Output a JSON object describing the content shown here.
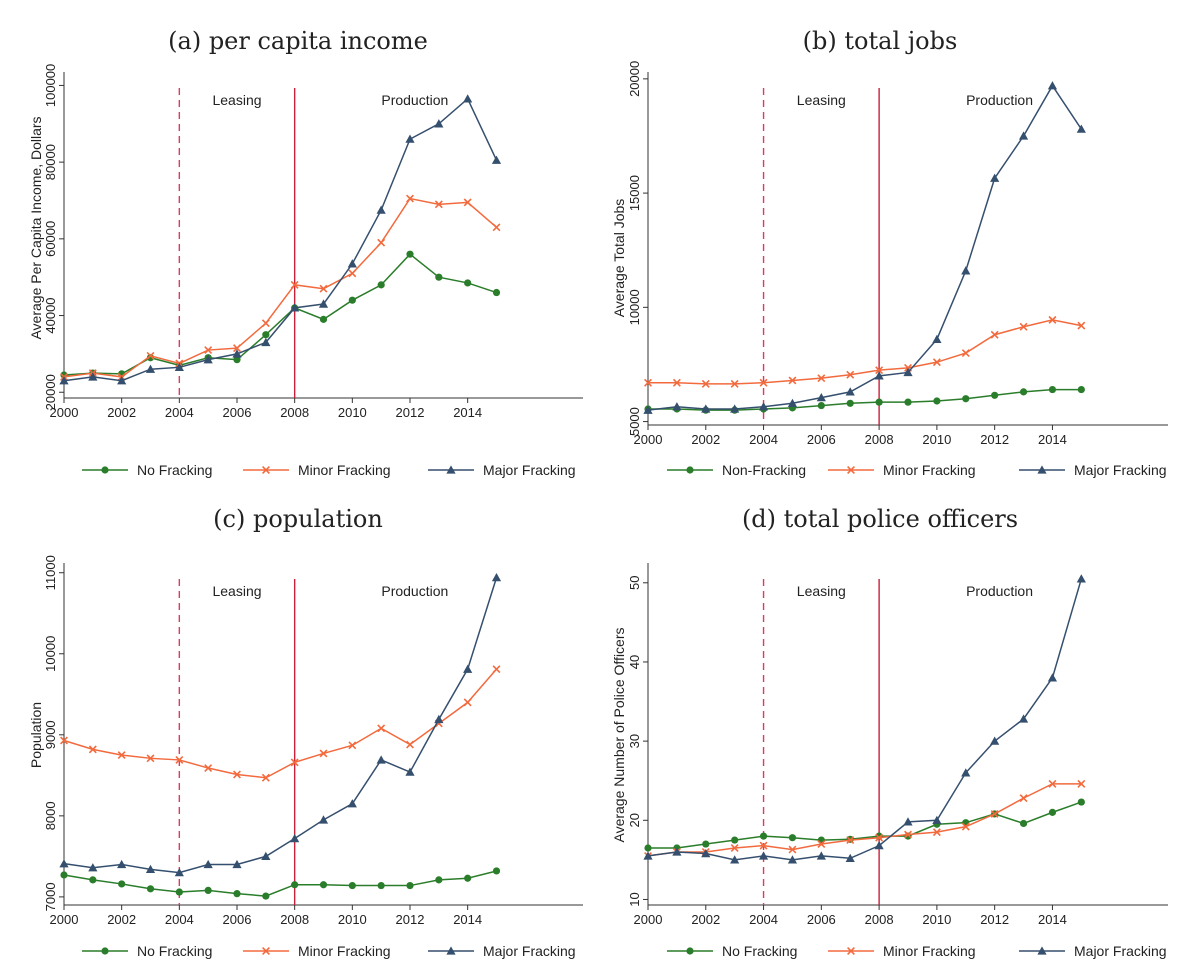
{
  "colors": {
    "no_fracking": "#2a7d2a",
    "minor_fracking": "#f26a3d",
    "major_fracking": "#354f6e",
    "leasing_line": "#e0385e",
    "production_line": "#cc1f3a"
  },
  "chart_data": [
    {
      "type": "line",
      "title": "(a) per capita income",
      "xlabel": "",
      "ylabel": "Average Per Capita Income, Dollars",
      "x": [
        2000,
        2001,
        2002,
        2003,
        2004,
        2005,
        2006,
        2007,
        2008,
        2009,
        2010,
        2011,
        2012,
        2013,
        2014,
        2015
      ],
      "xlim": [
        2000,
        2018
      ],
      "xticks": [
        2000,
        2002,
        2004,
        2006,
        2008,
        2010,
        2012,
        2014
      ],
      "ylim": [
        18500,
        103500
      ],
      "yticks": [
        20000,
        40000,
        60000,
        80000,
        100000
      ],
      "ytick_labels": [
        "20000",
        "40000",
        "60000",
        "80000",
        "100000"
      ],
      "grid": false,
      "legend_position": "bottom",
      "regions": [
        {
          "label": "Leasing",
          "x": 2004,
          "line": "dashed"
        },
        {
          "label": "Production",
          "x": 2008,
          "line": "solid"
        }
      ],
      "series": [
        {
          "name": "No Fracking",
          "marker": "circle",
          "values": [
            24500,
            25000,
            24800,
            29000,
            27000,
            29000,
            28500,
            35000,
            42000,
            39000,
            44000,
            48000,
            56000,
            50000,
            48500,
            46000
          ]
        },
        {
          "name": "Minor Fracking",
          "marker": "x",
          "values": [
            24000,
            25000,
            24000,
            29500,
            27500,
            31000,
            31500,
            38000,
            48000,
            47000,
            51000,
            59000,
            70500,
            69000,
            69500,
            63000
          ]
        },
        {
          "name": "Major Fracking",
          "marker": "triangle",
          "values": [
            23000,
            24000,
            23000,
            26000,
            26500,
            28500,
            30000,
            33000,
            42000,
            43000,
            53500,
            67500,
            86000,
            90000,
            96500,
            80500
          ]
        }
      ]
    },
    {
      "type": "line",
      "title": "(b) total jobs",
      "xlabel": "",
      "ylabel": "Average Total Jobs",
      "x": [
        2000,
        2001,
        2002,
        2003,
        2004,
        2005,
        2006,
        2007,
        2008,
        2009,
        2010,
        2011,
        2012,
        2013,
        2014,
        2015
      ],
      "xlim": [
        2000,
        2018
      ],
      "xticks": [
        2000,
        2002,
        2004,
        2006,
        2008,
        2010,
        2012,
        2014
      ],
      "ylim": [
        4850,
        20300
      ],
      "yticks": [
        5000,
        10000,
        15000,
        20000
      ],
      "ytick_labels": [
        "5000",
        "10000",
        "15000",
        "20000"
      ],
      "grid": false,
      "legend_position": "bottom",
      "regions": [
        {
          "label": "Leasing",
          "x": 2004,
          "line": "dashed"
        },
        {
          "label": "Production",
          "x": 2008,
          "line": "solid"
        }
      ],
      "series": [
        {
          "name": "Non-Fracking",
          "marker": "circle",
          "values": [
            5550,
            5550,
            5500,
            5500,
            5550,
            5600,
            5700,
            5800,
            5850,
            5850,
            5900,
            6000,
            6150,
            6300,
            6400,
            6400
          ]
        },
        {
          "name": "Minor Fracking",
          "marker": "x",
          "values": [
            6700,
            6700,
            6650,
            6650,
            6700,
            6800,
            6900,
            7050,
            7250,
            7350,
            7600,
            8000,
            8800,
            9150,
            9450,
            9200
          ]
        },
        {
          "name": "Major Fracking",
          "marker": "triangle",
          "values": [
            5500,
            5650,
            5550,
            5550,
            5650,
            5800,
            6050,
            6300,
            7000,
            7150,
            8600,
            11600,
            15650,
            17500,
            19700,
            17800
          ]
        }
      ]
    },
    {
      "type": "line",
      "title": "(c) population",
      "xlabel": "",
      "ylabel": "Population",
      "x": [
        2000,
        2001,
        2002,
        2003,
        2004,
        2005,
        2006,
        2007,
        2008,
        2009,
        2010,
        2011,
        2012,
        2013,
        2014,
        2015
      ],
      "xlim": [
        2000,
        2018
      ],
      "xticks": [
        2000,
        2002,
        2004,
        2006,
        2008,
        2010,
        2012,
        2014
      ],
      "ylim": [
        6900,
        11120
      ],
      "yticks": [
        7000,
        8000,
        9000,
        10000,
        11000
      ],
      "ytick_labels": [
        "7000",
        "8000",
        "9000",
        "10000",
        "11000"
      ],
      "grid": false,
      "legend_position": "bottom",
      "regions": [
        {
          "label": "Leasing",
          "x": 2004,
          "line": "dashed"
        },
        {
          "label": "Production",
          "x": 2008,
          "line": "solid"
        }
      ],
      "series": [
        {
          "name": "No Fracking",
          "marker": "circle",
          "values": [
            7270,
            7210,
            7160,
            7100,
            7060,
            7080,
            7040,
            7010,
            7150,
            7150,
            7140,
            7140,
            7140,
            7210,
            7230,
            7320
          ]
        },
        {
          "name": "Minor Fracking",
          "marker": "x",
          "values": [
            8930,
            8820,
            8750,
            8710,
            8690,
            8590,
            8510,
            8470,
            8660,
            8770,
            8870,
            9080,
            8880,
            9140,
            9400,
            9810
          ]
        },
        {
          "name": "Major Fracking",
          "marker": "triangle",
          "values": [
            7410,
            7360,
            7400,
            7340,
            7300,
            7400,
            7400,
            7500,
            7720,
            7950,
            8150,
            8690,
            8540,
            9190,
            9810,
            10940
          ]
        }
      ]
    },
    {
      "type": "line",
      "title": "(d) total police officers",
      "xlabel": "",
      "ylabel": "Average Number of Police Officers",
      "x": [
        2000,
        2001,
        2002,
        2003,
        2004,
        2005,
        2006,
        2007,
        2008,
        2009,
        2010,
        2011,
        2012,
        2013,
        2014,
        2015
      ],
      "xlim": [
        2000,
        2018
      ],
      "xticks": [
        2000,
        2002,
        2004,
        2006,
        2008,
        2010,
        2012,
        2014
      ],
      "ylim": [
        9.3,
        52.5
      ],
      "yticks": [
        10,
        20,
        30,
        40,
        50
      ],
      "ytick_labels": [
        "10",
        "20",
        "30",
        "40",
        "50"
      ],
      "grid": false,
      "legend_position": "bottom",
      "regions": [
        {
          "label": "Leasing",
          "x": 2004,
          "line": "dashed"
        },
        {
          "label": "Production",
          "x": 2008,
          "line": "solid"
        }
      ],
      "series": [
        {
          "name": "No Fracking",
          "marker": "circle",
          "values": [
            16.5,
            16.5,
            17,
            17.5,
            18,
            17.8,
            17.5,
            17.6,
            18,
            18,
            19.5,
            19.7,
            20.8,
            19.6,
            21,
            22.3
          ]
        },
        {
          "name": "Minor Fracking",
          "marker": "x",
          "values": [
            15.5,
            16,
            16,
            16.5,
            16.8,
            16.3,
            17,
            17.5,
            17.8,
            18.2,
            18.5,
            19.2,
            20.8,
            22.8,
            24.6,
            24.6
          ]
        },
        {
          "name": "Major Fracking",
          "marker": "triangle",
          "values": [
            15.5,
            16,
            15.8,
            15,
            15.5,
            15,
            15.5,
            15.2,
            16.8,
            19.8,
            20,
            26,
            30,
            32.8,
            38,
            50.5
          ]
        }
      ]
    }
  ]
}
